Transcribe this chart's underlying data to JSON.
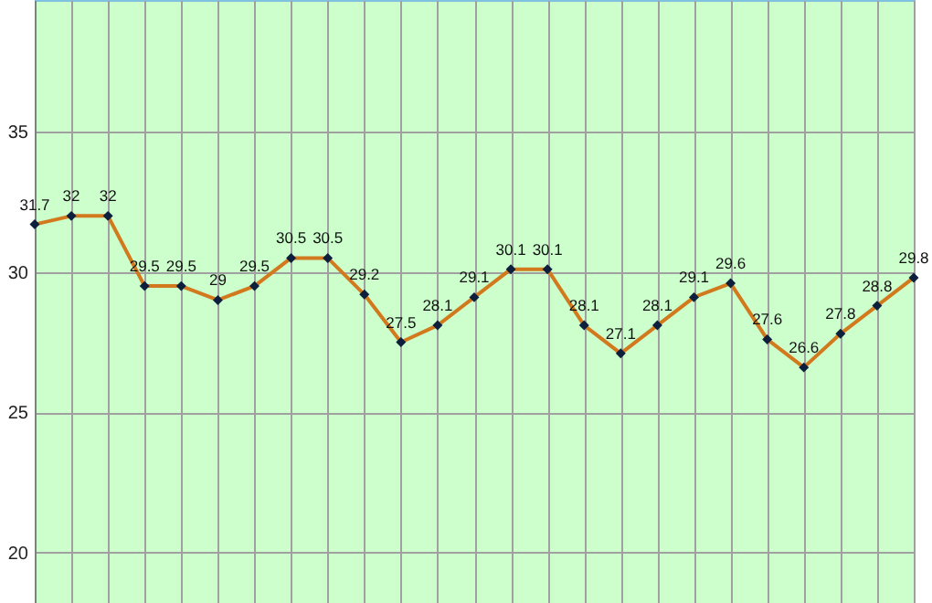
{
  "chart_data": {
    "type": "line",
    "categories": [
      null,
      null,
      null,
      null,
      null,
      null,
      null,
      null,
      null,
      null,
      null,
      null,
      null,
      null,
      null,
      null,
      null,
      null,
      null,
      null,
      null,
      null,
      null,
      null,
      null
    ],
    "series": [
      {
        "color": "#d2791e",
        "values": [
          31.7,
          32,
          32,
          29.5,
          29.5,
          29,
          29.5,
          30.5,
          30.5,
          29.2,
          27.5,
          28.1,
          29.1,
          30.1,
          30.1,
          28.1,
          27.1,
          28.1,
          29.1,
          29.6,
          27.6,
          26.6,
          27.8,
          28.8,
          29.8
        ]
      }
    ],
    "ylim": [
      18.2,
      39.7
    ],
    "yticks": [
      20,
      25,
      30,
      35
    ],
    "grid": true,
    "tick_labels": "y",
    "marker": "diamond",
    "line_style": "solid",
    "data_labels": true
  }
}
